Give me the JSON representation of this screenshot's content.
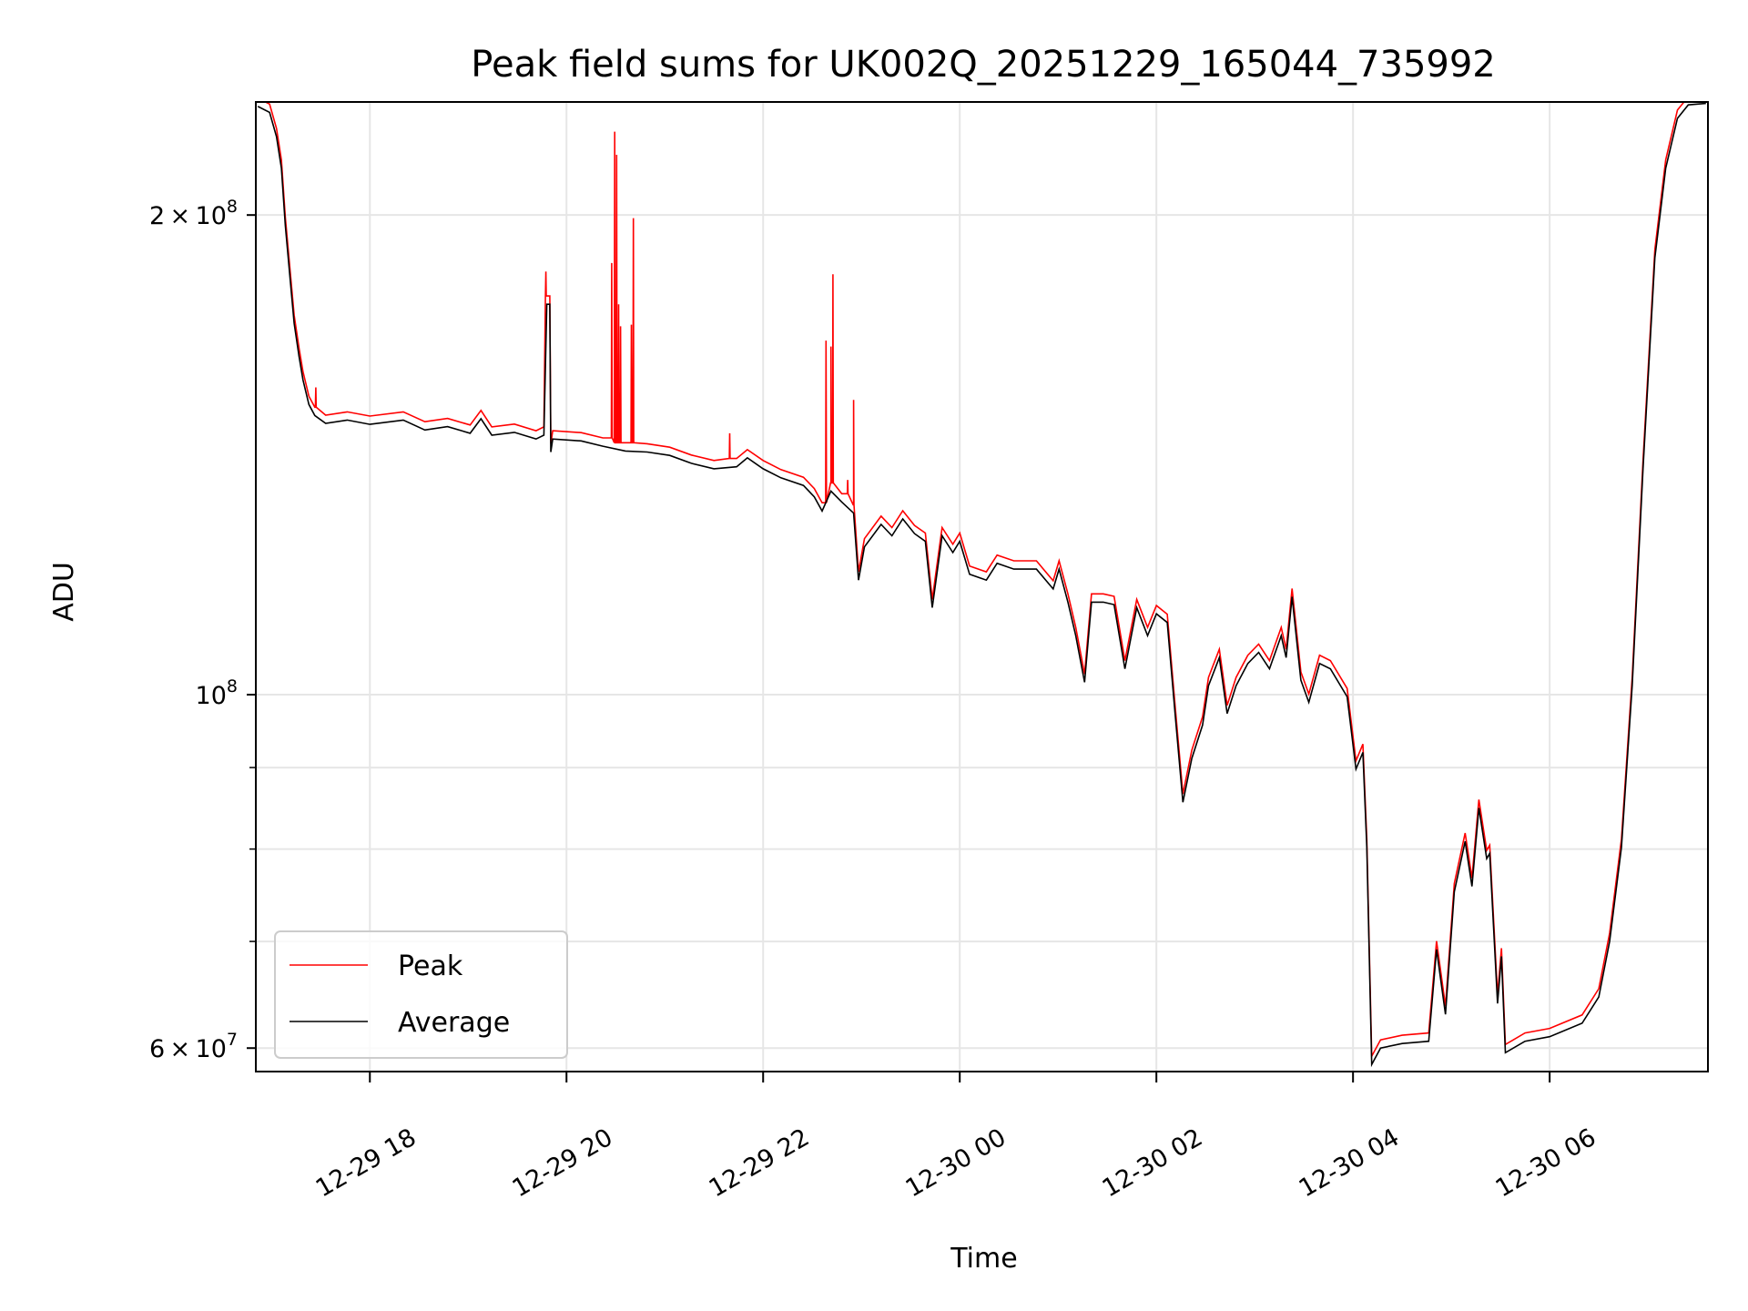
{
  "chart_data": {
    "type": "line",
    "title": "Peak field sums for UK002Q_20251229_165044_735992",
    "xlabel": "Time",
    "ylabel": "ADU",
    "x_units": "hours since 2025-12-29 00:00",
    "y_units": "millions of ADU",
    "y_scale": "log",
    "xlim": [
      16.84,
      31.61
    ],
    "ylim": [
      58.0,
      235.5
    ],
    "grid": true,
    "legend_position": "bottom-left",
    "x_ticks": [
      {
        "value": 18,
        "label": "12-29 18"
      },
      {
        "value": 20,
        "label": "12-29 20"
      },
      {
        "value": 22,
        "label": "12-29 22"
      },
      {
        "value": 24,
        "label": "12-30 00"
      },
      {
        "value": 26,
        "label": "12-30 02"
      },
      {
        "value": 28,
        "label": "12-30 04"
      },
      {
        "value": 30,
        "label": "12-30 06"
      }
    ],
    "y_ticks": [
      {
        "value": 200,
        "mant": "2 × 10",
        "exp": "8"
      },
      {
        "value": 100,
        "mant": "10",
        "exp": "8"
      },
      {
        "value": 60,
        "mant": "6 × 10",
        "exp": "7"
      }
    ],
    "y_minor_ticks": [
      70,
      80,
      90
    ],
    "series": [
      {
        "name": "Average",
        "color": "#000000",
        "points": [
          [
            16.86,
            234
          ],
          [
            16.98,
            232
          ],
          [
            17.05,
            224
          ],
          [
            17.1,
            214
          ],
          [
            17.14,
            197
          ],
          [
            17.19,
            182
          ],
          [
            17.23,
            171
          ],
          [
            17.28,
            163
          ],
          [
            17.32,
            157.6
          ],
          [
            17.38,
            152.1
          ],
          [
            17.44,
            149.7
          ],
          [
            17.55,
            148
          ],
          [
            17.77,
            148.7
          ],
          [
            18.0,
            147.8
          ],
          [
            18.34,
            148.7
          ],
          [
            18.56,
            146.6
          ],
          [
            18.79,
            147.3
          ],
          [
            19.02,
            145.9
          ],
          [
            19.13,
            149
          ],
          [
            19.24,
            145.5
          ],
          [
            19.47,
            146.1
          ],
          [
            19.69,
            144.7
          ],
          [
            19.77,
            145.5
          ],
          [
            19.8,
            175.8
          ],
          [
            19.83,
            175.8
          ],
          [
            19.84,
            142
          ],
          [
            19.86,
            144.7
          ],
          [
            20.15,
            144.3
          ],
          [
            20.37,
            143.2
          ],
          [
            20.6,
            142.2
          ],
          [
            20.82,
            142
          ],
          [
            21.05,
            141.3
          ],
          [
            21.27,
            139.7
          ],
          [
            21.5,
            138.6
          ],
          [
            21.73,
            139
          ],
          [
            21.84,
            140.8
          ],
          [
            22.0,
            138.6
          ],
          [
            22.18,
            136.8
          ],
          [
            22.41,
            135.3
          ],
          [
            22.52,
            133.1
          ],
          [
            22.6,
            130.4
          ],
          [
            22.69,
            134.2
          ],
          [
            22.8,
            132.1
          ],
          [
            22.92,
            130
          ],
          [
            22.97,
            118
          ],
          [
            23.03,
            123.8
          ],
          [
            23.2,
            127.9
          ],
          [
            23.31,
            125.8
          ],
          [
            23.42,
            128.9
          ],
          [
            23.54,
            126.2
          ],
          [
            23.65,
            124.8
          ],
          [
            23.72,
            113.4
          ],
          [
            23.82,
            125.8
          ],
          [
            23.93,
            122.8
          ],
          [
            24.0,
            124.8
          ],
          [
            24.1,
            119
          ],
          [
            24.27,
            118
          ],
          [
            24.38,
            120.9
          ],
          [
            24.55,
            119.9
          ],
          [
            24.78,
            119.9
          ],
          [
            24.95,
            116.5
          ],
          [
            25.01,
            119.9
          ],
          [
            25.1,
            114.3
          ],
          [
            25.18,
            108.9
          ],
          [
            25.27,
            101.8
          ],
          [
            25.34,
            114.3
          ],
          [
            25.46,
            114.3
          ],
          [
            25.57,
            113.9
          ],
          [
            25.68,
            103.8
          ],
          [
            25.8,
            113.4
          ],
          [
            25.91,
            108.9
          ],
          [
            26.0,
            112.4
          ],
          [
            26.11,
            111
          ],
          [
            26.19,
            97.3
          ],
          [
            26.27,
            85.6
          ],
          [
            26.36,
            91.2
          ],
          [
            26.47,
            95.7
          ],
          [
            26.53,
            101.3
          ],
          [
            26.64,
            105.5
          ],
          [
            26.72,
            97.3
          ],
          [
            26.81,
            101.3
          ],
          [
            26.93,
            104.6
          ],
          [
            27.04,
            106.3
          ],
          [
            27.15,
            103.8
          ],
          [
            27.27,
            108.9
          ],
          [
            27.32,
            105.5
          ],
          [
            27.38,
            115.2
          ],
          [
            27.47,
            102.1
          ],
          [
            27.55,
            98.9
          ],
          [
            27.66,
            104.6
          ],
          [
            27.77,
            103.8
          ],
          [
            27.94,
            99.7
          ],
          [
            28.03,
            89.8
          ],
          [
            28.1,
            92
          ],
          [
            28.14,
            80.2
          ],
          [
            28.19,
            58.6
          ],
          [
            28.28,
            60
          ],
          [
            28.5,
            60.4
          ],
          [
            28.77,
            60.6
          ],
          [
            28.85,
            69.2
          ],
          [
            28.94,
            63
          ],
          [
            29.03,
            75.2
          ],
          [
            29.14,
            80.9
          ],
          [
            29.21,
            75.8
          ],
          [
            29.28,
            84.9
          ],
          [
            29.36,
            78.9
          ],
          [
            29.39,
            79.5
          ],
          [
            29.47,
            64
          ],
          [
            29.51,
            68.5
          ],
          [
            29.55,
            59.6
          ],
          [
            29.75,
            60.6
          ],
          [
            30.0,
            61
          ],
          [
            30.33,
            62.2
          ],
          [
            30.5,
            64.6
          ],
          [
            30.61,
            70
          ],
          [
            30.73,
            80.2
          ],
          [
            30.84,
            101.3
          ],
          [
            30.95,
            138.6
          ],
          [
            31.07,
            188
          ],
          [
            31.18,
            214
          ],
          [
            31.3,
            230
          ],
          [
            31.41,
            234.5
          ],
          [
            31.59,
            235
          ]
        ]
      },
      {
        "name": "Peak",
        "color": "#ff0000",
        "ratio_to_average": 1.012,
        "spikes": [
          [
            17.45,
            155.9
          ],
          [
            19.79,
            184.3
          ],
          [
            20.46,
            186.6
          ],
          [
            20.49,
            225.6
          ],
          [
            20.51,
            218.2
          ],
          [
            20.53,
            175.8
          ],
          [
            20.55,
            170.3
          ],
          [
            20.66,
            170.7
          ],
          [
            20.68,
            199.1
          ],
          [
            21.66,
            145.9
          ],
          [
            22.64,
            166.8
          ],
          [
            22.69,
            165.4
          ],
          [
            22.71,
            183.6
          ],
          [
            22.86,
            136.4
          ],
          [
            22.92,
            153.1
          ]
        ]
      }
    ],
    "legend": [
      {
        "label": "Peak",
        "color": "#ff0000"
      },
      {
        "label": "Average",
        "color": "#000000"
      }
    ]
  }
}
